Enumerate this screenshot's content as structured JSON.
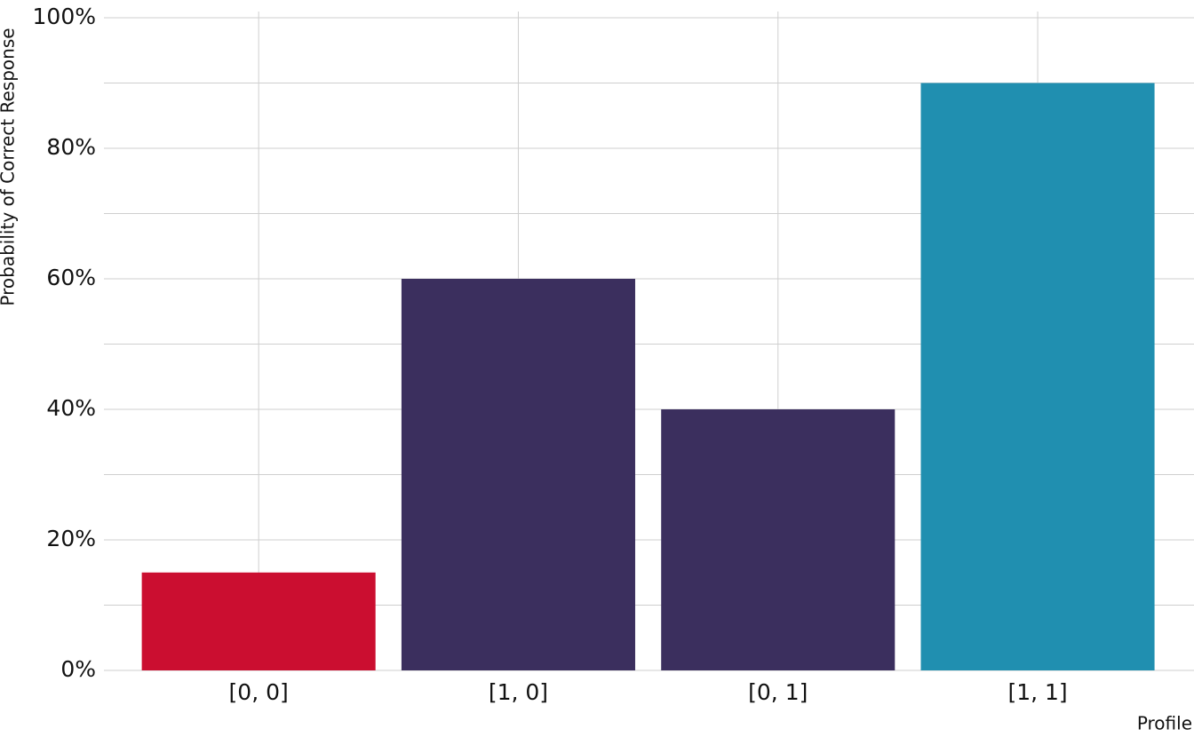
{
  "chart_data": {
    "type": "bar",
    "xlabel": "Profile",
    "ylabel": "Probability of Correct Response",
    "categories": [
      "[0, 0]",
      "[1, 0]",
      "[0, 1]",
      "[1, 1]"
    ],
    "values": [
      15,
      60,
      40,
      90
    ],
    "colors": [
      "#cb0e30",
      "#3b2f5e",
      "#3b2f5e",
      "#208fb0"
    ],
    "ylim": [
      0,
      100
    ],
    "yticks": [
      {
        "value": 0,
        "label": "0%"
      },
      {
        "value": 20,
        "label": "20%"
      },
      {
        "value": 40,
        "label": "40%"
      },
      {
        "value": 60,
        "label": "60%"
      },
      {
        "value": 80,
        "label": "80%"
      },
      {
        "value": 100,
        "label": "100%"
      }
    ],
    "yminor": [
      10,
      30,
      50,
      70,
      90
    ],
    "grid": true
  }
}
